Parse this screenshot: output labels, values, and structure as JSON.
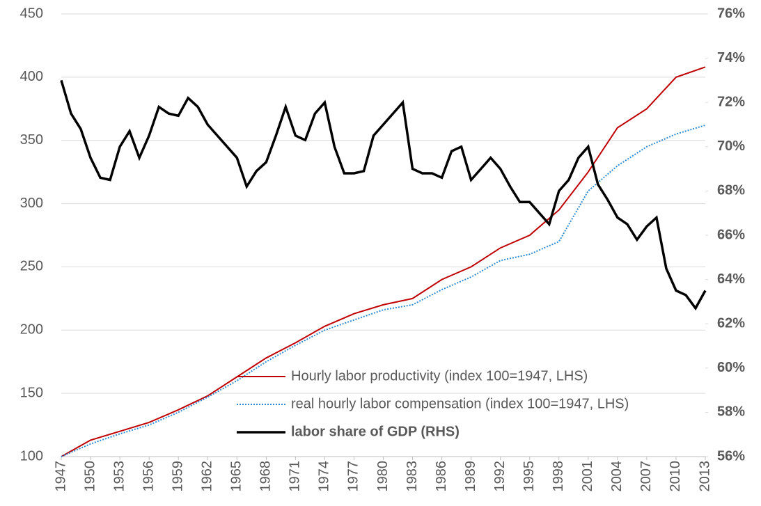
{
  "chart_data": {
    "type": "line",
    "xlim": [
      1947,
      2013
    ],
    "xticks": [
      1947,
      1950,
      1953,
      1956,
      1959,
      1962,
      1965,
      1968,
      1971,
      1974,
      1977,
      1980,
      1983,
      1986,
      1989,
      1992,
      1995,
      1998,
      2001,
      2004,
      2007,
      2010,
      2013
    ],
    "ylim": [
      100,
      450
    ],
    "yticks": [
      100,
      150,
      200,
      250,
      300,
      350,
      400,
      450
    ],
    "y2lim": [
      56,
      76
    ],
    "y2ticks": [
      {
        "value": 56,
        "label": "56%"
      },
      {
        "value": 58,
        "label": "58%"
      },
      {
        "value": 60,
        "label": "60%"
      },
      {
        "value": 62,
        "label": "62%"
      },
      {
        "value": 64,
        "label": "64%"
      },
      {
        "value": 66,
        "label": "66%"
      },
      {
        "value": 68,
        "label": "68%"
      },
      {
        "value": 70,
        "label": "70%"
      },
      {
        "value": 72,
        "label": "72%"
      },
      {
        "value": 74,
        "label": "74%"
      },
      {
        "value": 76,
        "label": "76%"
      }
    ],
    "grid": true,
    "legend_loc": "lower right",
    "series": [
      {
        "name": "Hourly labor productivity (index 100=1947, LHS)",
        "color": "#c00000",
        "style": "solid",
        "x": [
          1947,
          1950,
          1953,
          1956,
          1959,
          1962,
          1965,
          1968,
          1971,
          1974,
          1977,
          1980,
          1983,
          1986,
          1989,
          1992,
          1995,
          1998,
          2001,
          2004,
          2007,
          2010,
          2013
        ],
        "values": [
          100,
          113,
          120,
          127,
          137,
          148,
          163,
          178,
          190,
          203,
          213,
          220,
          225,
          240,
          250,
          265,
          275,
          295,
          325,
          360,
          375,
          400,
          408
        ]
      },
      {
        "name": "real hourly labor compensation (index 100=1947, LHS)",
        "color": "#2e8bd0",
        "style": "dotted",
        "x": [
          1947,
          1950,
          1953,
          1956,
          1959,
          1962,
          1965,
          1968,
          1971,
          1974,
          1977,
          1980,
          1983,
          1986,
          1989,
          1992,
          1995,
          1998,
          2001,
          2004,
          2007,
          2010,
          2013
        ],
        "values": [
          100,
          110,
          118,
          125,
          135,
          147,
          160,
          175,
          188,
          200,
          208,
          216,
          220,
          232,
          242,
          255,
          260,
          270,
          310,
          330,
          345,
          355,
          362
        ]
      },
      {
        "name": "labor share of GDP (RHS)",
        "color": "#000000",
        "style": "bold",
        "axis": "y2",
        "x": [
          1947,
          1948,
          1949,
          1950,
          1951,
          1952,
          1953,
          1954,
          1955,
          1956,
          1957,
          1958,
          1959,
          1960,
          1961,
          1962,
          1963,
          1964,
          1965,
          1966,
          1967,
          1968,
          1969,
          1970,
          1971,
          1972,
          1973,
          1974,
          1975,
          1976,
          1977,
          1978,
          1979,
          1980,
          1981,
          1982,
          1983,
          1984,
          1985,
          1986,
          1987,
          1988,
          1989,
          1990,
          1991,
          1992,
          1993,
          1994,
          1995,
          1996,
          1997,
          1998,
          1999,
          2000,
          2001,
          2002,
          2003,
          2004,
          2005,
          2006,
          2007,
          2008,
          2009,
          2010,
          2011,
          2012,
          2013
        ],
        "values": [
          73,
          71.5,
          70.8,
          69.5,
          68.6,
          68.5,
          70,
          70.7,
          69.5,
          70.5,
          71.8,
          71.5,
          71.4,
          72.2,
          71.8,
          71,
          70.5,
          70,
          69.5,
          68.2,
          68.9,
          69.3,
          70.5,
          71.8,
          70.5,
          70.3,
          71.5,
          72,
          70,
          68.8,
          68.8,
          68.9,
          70.5,
          71,
          71.5,
          72,
          69,
          68.8,
          68.8,
          68.6,
          69.8,
          70,
          68.5,
          69,
          69.5,
          69,
          68.2,
          67.5,
          67.5,
          67,
          66.5,
          68,
          68.5,
          69.5,
          70,
          68.3,
          67.6,
          66.8,
          66.5,
          65.8,
          66.4,
          66.8,
          64.5,
          63.5,
          63.3,
          62.7,
          63.5
        ]
      }
    ]
  }
}
